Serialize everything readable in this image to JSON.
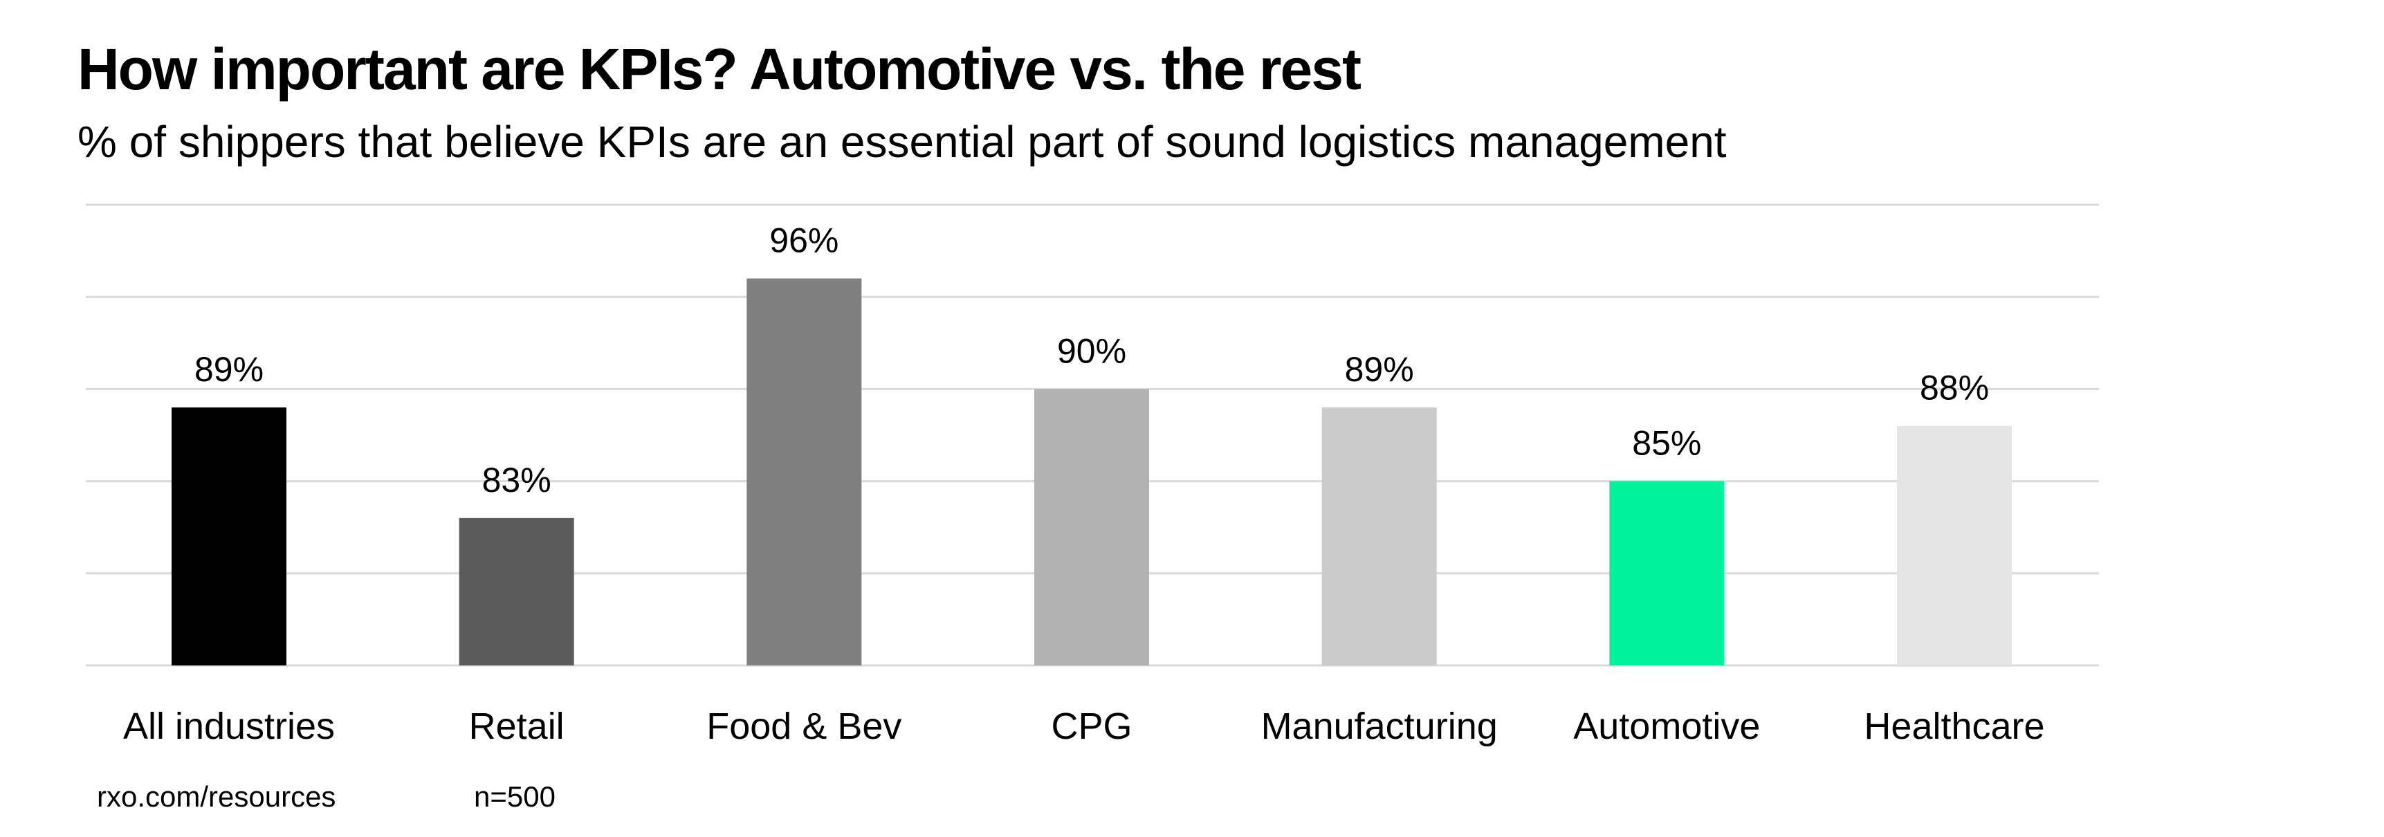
{
  "header": {
    "title": "How important are KPIs? Automotive vs. the rest",
    "subtitle": "% of shippers that believe KPIs are an essential part of sound logistics management"
  },
  "footer": {
    "source": "rxo.com/resources",
    "sample_size": "n=500"
  },
  "chart_data": {
    "type": "bar",
    "title": "How important are KPIs? Automotive vs. the rest",
    "subtitle": "% of shippers that believe KPIs are an essential part of sound logistics management",
    "xlabel": "",
    "ylabel": "",
    "categories": [
      "All industries",
      "Retail",
      "Food & Bev",
      "CPG",
      "Manufacturing",
      "Automotive",
      "Healthcare"
    ],
    "values": [
      89,
      83,
      96,
      90,
      89,
      85,
      88
    ],
    "data_labels": [
      "89%",
      "83%",
      "96%",
      "90%",
      "89%",
      "85%",
      "88%"
    ],
    "colors": [
      "#000000",
      "#5b5b5b",
      "#7f7f7f",
      "#b2b2b2",
      "#cbcbcb",
      "#00f29c",
      "#e4e4e4"
    ],
    "highlight": "Automotive",
    "ylim": [
      75,
      100
    ],
    "gridlines": [
      75,
      80,
      85,
      90,
      95,
      100
    ],
    "grid": true,
    "y_tick_labels_visible": false,
    "legend": "none"
  }
}
